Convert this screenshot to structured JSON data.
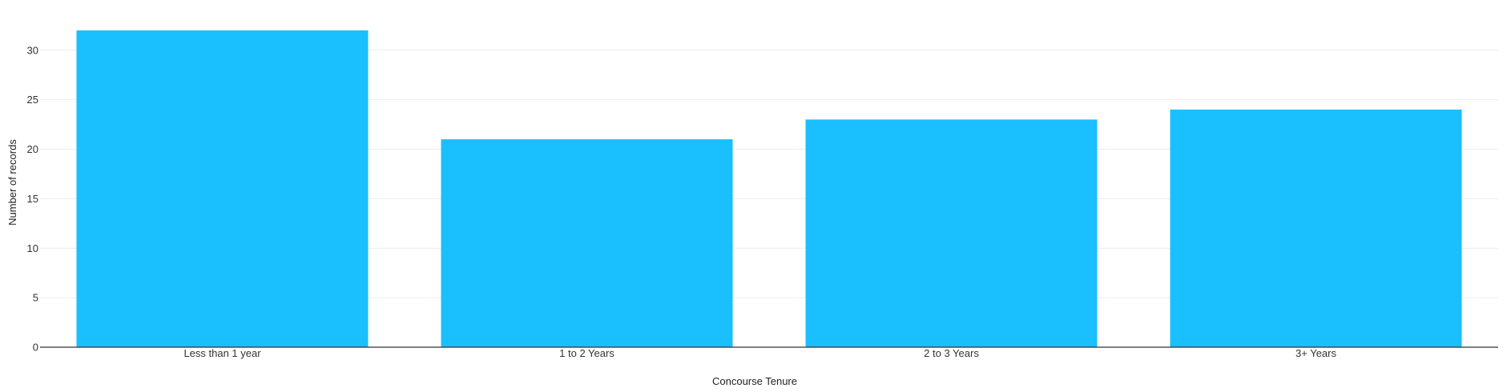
{
  "chart_data": {
    "type": "bar",
    "categories": [
      "Less than 1 year",
      "1 to 2 Years",
      "2 to 3 Years",
      "3+ Years"
    ],
    "values": [
      32,
      21,
      23,
      24
    ],
    "title": "",
    "xlabel": "Concourse Tenure",
    "ylabel": "Number of records",
    "ylim": [
      0,
      32
    ],
    "yticks": [
      0,
      5,
      10,
      15,
      20,
      25,
      30
    ],
    "grid": true,
    "legend": "none",
    "colors": {
      "bar": "#1abffe",
      "grid": "#ececec",
      "axis": "#333333"
    }
  }
}
